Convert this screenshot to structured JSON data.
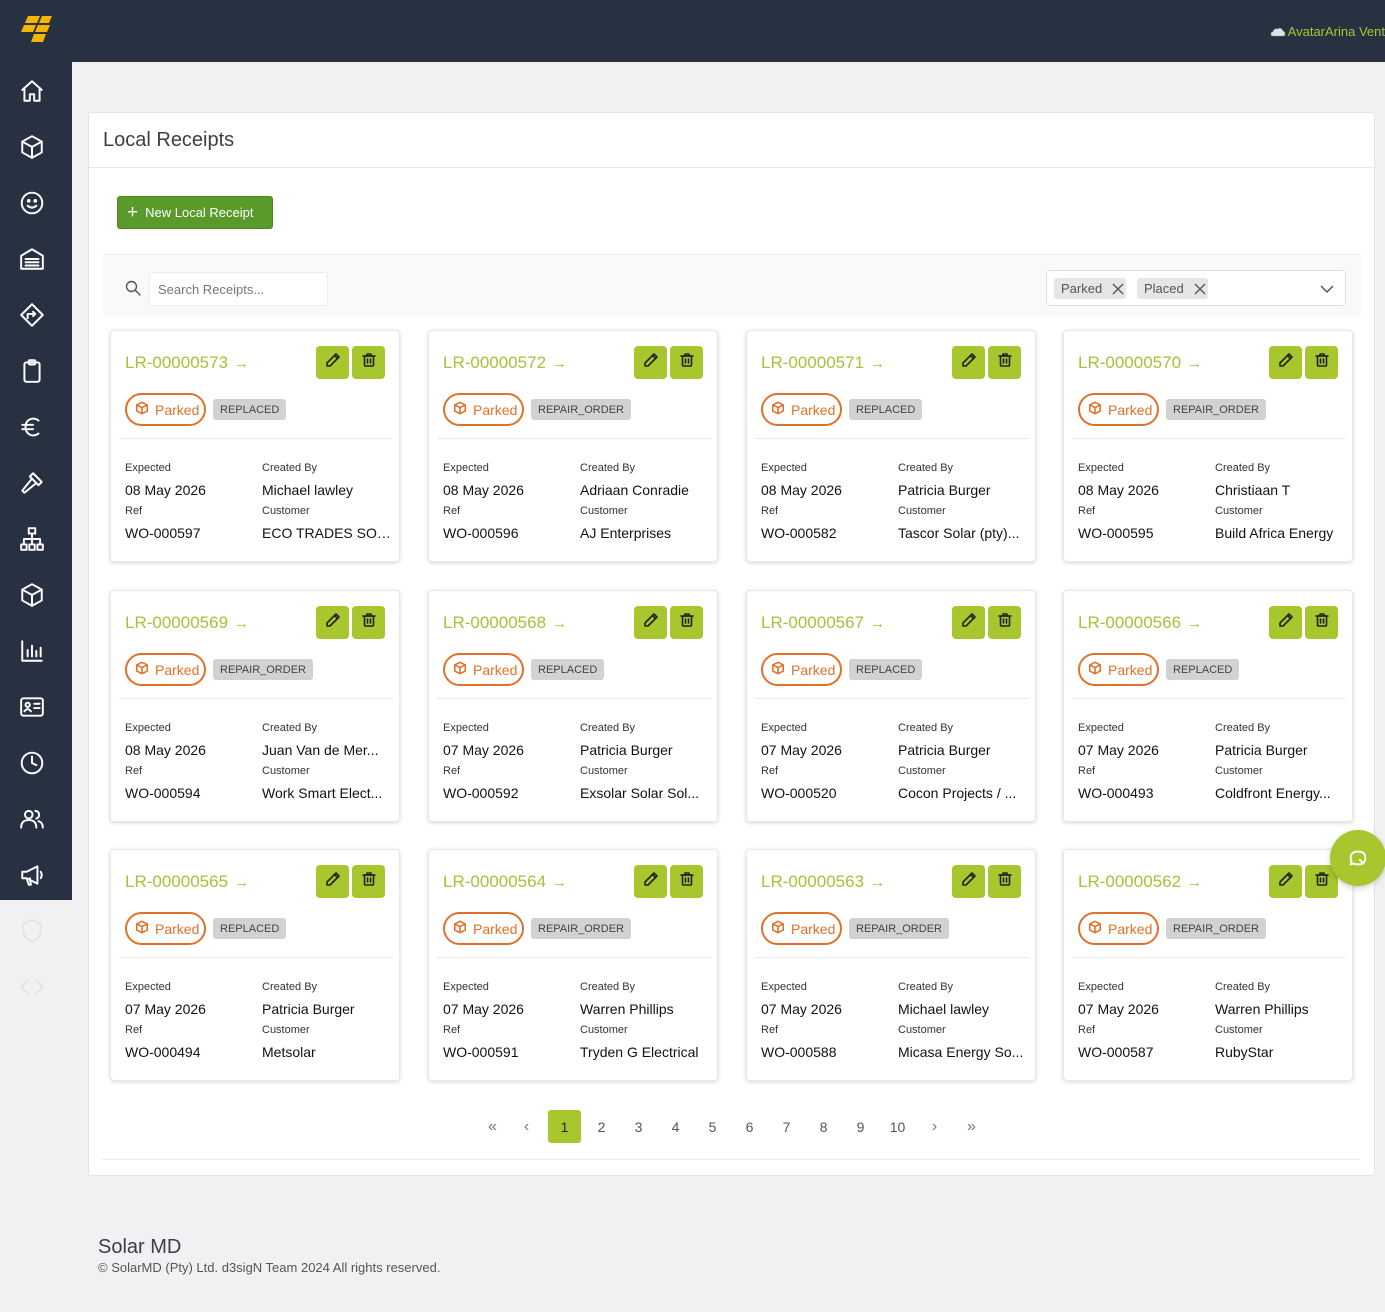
{
  "header": {
    "user_text": "AvatarArina Vent",
    "brand_color": "#f5b400",
    "accent_color": "#a8c62e",
    "bar_color": "#283142"
  },
  "sidebar": {
    "items": [
      {
        "icon": "home-icon"
      },
      {
        "icon": "box-icon"
      },
      {
        "icon": "smiley-icon"
      },
      {
        "icon": "warehouse-icon"
      },
      {
        "icon": "route-icon"
      },
      {
        "icon": "clipboard-icon"
      },
      {
        "icon": "euro-icon"
      },
      {
        "icon": "hammer-icon"
      },
      {
        "icon": "hierarchy-icon"
      },
      {
        "icon": "package-icon"
      },
      {
        "icon": "bar-chart-icon"
      },
      {
        "icon": "id-card-icon"
      },
      {
        "icon": "clock-icon"
      },
      {
        "icon": "users-icon"
      },
      {
        "icon": "megaphone-icon"
      },
      {
        "icon": "shield-icon"
      },
      {
        "icon": "code-icon"
      }
    ]
  },
  "page": {
    "title": "Local Receipts",
    "new_button_label": "New Local Receipt"
  },
  "filters": {
    "search_placeholder": "Search Receipts...",
    "selected_statuses": [
      "Parked",
      "Placed"
    ]
  },
  "labels": {
    "expected": "Expected",
    "created_by": "Created By",
    "ref": "Ref",
    "customer": "Customer"
  },
  "receipts": [
    {
      "id": "LR-00000573",
      "status": "Parked",
      "type": "REPLACED",
      "expected": "08 May 2026",
      "created_by": "Michael lawley",
      "ref": "WO-000597",
      "customer": "ECO TRADES SOL..."
    },
    {
      "id": "LR-00000572",
      "status": "Parked",
      "type": "REPAIR_ORDER",
      "expected": "08 May 2026",
      "created_by": "Adriaan Conradie",
      "ref": "WO-000596",
      "customer": "AJ Enterprises"
    },
    {
      "id": "LR-00000571",
      "status": "Parked",
      "type": "REPLACED",
      "expected": "08 May 2026",
      "created_by": "Patricia Burger",
      "ref": "WO-000582",
      "customer": "Tascor Solar (pty)..."
    },
    {
      "id": "LR-00000570",
      "status": "Parked",
      "type": "REPAIR_ORDER",
      "expected": "08 May 2026",
      "created_by": "Christiaan T",
      "ref": "WO-000595",
      "customer": "Build Africa Energy"
    },
    {
      "id": "LR-00000569",
      "status": "Parked",
      "type": "REPAIR_ORDER",
      "expected": "08 May 2026",
      "created_by": "Juan Van de Mer...",
      "ref": "WO-000594",
      "customer": "Work Smart Elect..."
    },
    {
      "id": "LR-00000568",
      "status": "Parked",
      "type": "REPLACED",
      "expected": "07 May 2026",
      "created_by": "Patricia Burger",
      "ref": "WO-000592",
      "customer": "Exsolar Solar Sol..."
    },
    {
      "id": "LR-00000567",
      "status": "Parked",
      "type": "REPLACED",
      "expected": "07 May 2026",
      "created_by": "Patricia Burger",
      "ref": "WO-000520",
      "customer": "Cocon Projects / ..."
    },
    {
      "id": "LR-00000566",
      "status": "Parked",
      "type": "REPLACED",
      "expected": "07 May 2026",
      "created_by": "Patricia Burger",
      "ref": "WO-000493",
      "customer": "Coldfront Energy..."
    },
    {
      "id": "LR-00000565",
      "status": "Parked",
      "type": "REPLACED",
      "expected": "07 May 2026",
      "created_by": "Patricia Burger",
      "ref": "WO-000494",
      "customer": "Metsolar"
    },
    {
      "id": "LR-00000564",
      "status": "Parked",
      "type": "REPAIR_ORDER",
      "expected": "07 May 2026",
      "created_by": "Warren Phillips",
      "ref": "WO-000591",
      "customer": "Tryden G Electrical"
    },
    {
      "id": "LR-00000563",
      "status": "Parked",
      "type": "REPAIR_ORDER",
      "expected": "07 May 2026",
      "created_by": "Michael lawley",
      "ref": "WO-000588",
      "customer": "Micasa Energy So..."
    },
    {
      "id": "LR-00000562",
      "status": "Parked",
      "type": "REPAIR_ORDER",
      "expected": "07 May 2026",
      "created_by": "Warren Phillips",
      "ref": "WO-000587",
      "customer": "RubyStar"
    }
  ],
  "pagination": {
    "pages": [
      "1",
      "2",
      "3",
      "4",
      "5",
      "6",
      "7",
      "8",
      "9",
      "10"
    ],
    "current": "1"
  },
  "footer": {
    "brand": "Solar MD",
    "copyright": "© SolarMD (Pty) Ltd. d3sigN Team 2024 All rights reserved."
  }
}
